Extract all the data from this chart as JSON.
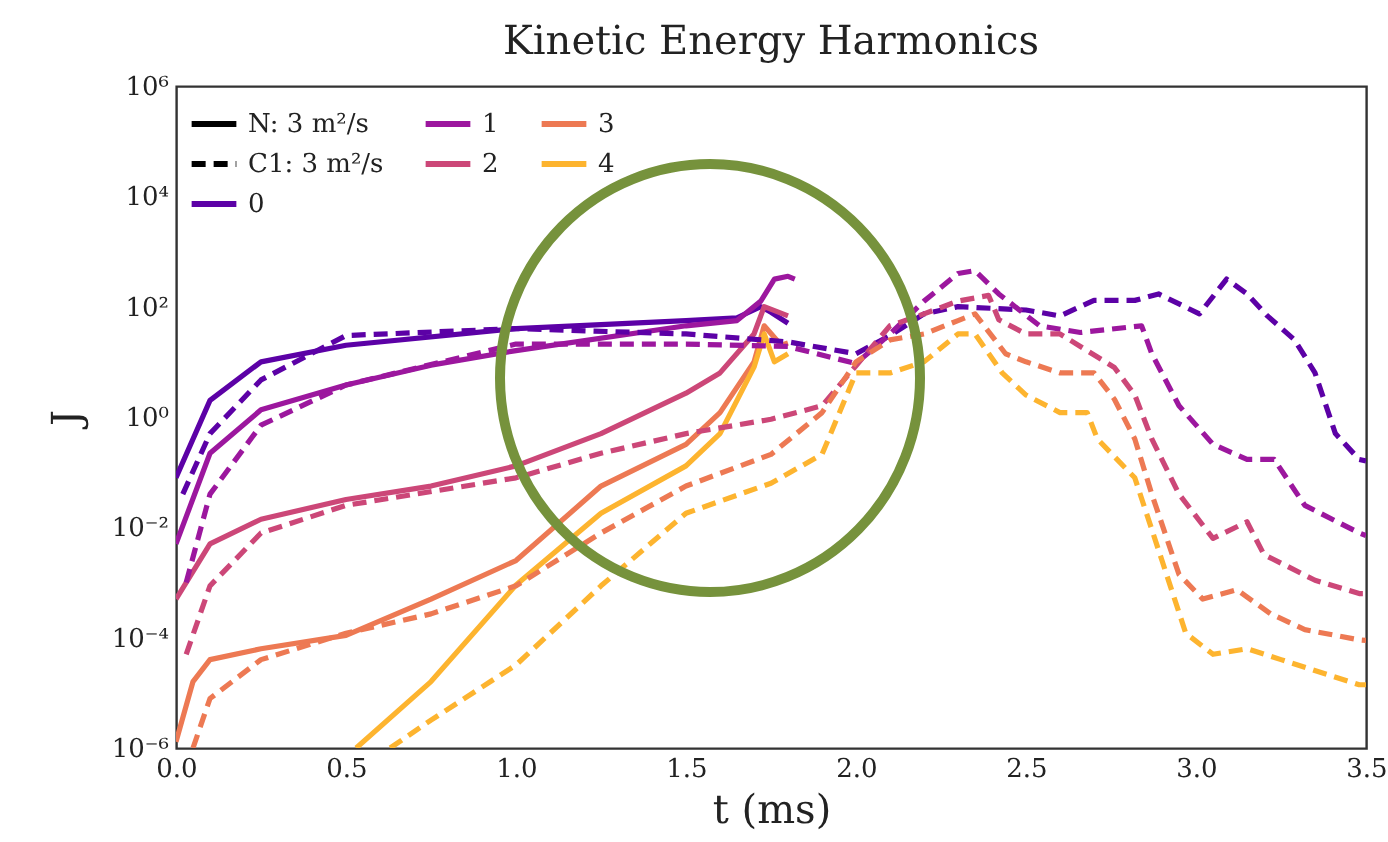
{
  "chart_data": {
    "type": "line",
    "title": "Kinetic Energy Harmonics",
    "xlabel": "t (ms)",
    "ylabel": "J",
    "log": "y",
    "grid": false,
    "legend": "top left",
    "xlim": [
      0,
      3.5
    ],
    "xticks": [
      {
        "value": 0,
        "label": "0.0"
      },
      0.5,
      {
        "value": 1,
        "label": "1.0"
      },
      1.5,
      {
        "value": 2,
        "label": "2.0"
      },
      2.5,
      {
        "value": 3,
        "label": "3.0"
      },
      3.5
    ],
    "ylim": [
      1e-06,
      1000000.0
    ],
    "yticks": [
      {
        "value": 1e-06,
        "label": "10⁻⁶"
      },
      {
        "value": 0.0001,
        "label": "10⁻⁴"
      },
      {
        "value": 0.01,
        "label": "10⁻²"
      },
      {
        "value": 1,
        "label": "10⁰"
      },
      {
        "value": 100,
        "label": "10²"
      },
      {
        "value": 10000.0,
        "label": "10⁴"
      },
      {
        "value": 1000000.0,
        "label": "10⁶"
      }
    ],
    "series": [
      {
        "name": "N: 3 m²/s",
        "color": "#000000",
        "line_style": "solid"
      },
      {
        "name": "C1: 3 m²/s",
        "color": "#000000",
        "line_style": "dashed"
      },
      {
        "name": "0",
        "color": "#5c01a6",
        "line_style": "solid",
        "x": [
          0,
          0.1,
          0.25,
          0.5,
          1.0,
          1.5,
          1.65,
          1.72,
          1.75,
          1.8
        ],
        "values": [
          0.079,
          2,
          10,
          20,
          40,
          56,
          63,
          100,
          79,
          50
        ]
      },
      {
        "name": "1",
        "color": "#9c179e",
        "line_style": "solid",
        "x": [
          0,
          0.1,
          0.25,
          0.5,
          0.75,
          1.0,
          1.5,
          1.65,
          1.72,
          1.76,
          1.8,
          1.82
        ],
        "values": [
          0.005,
          0.22,
          1.35,
          3.8,
          8.7,
          16,
          45,
          56,
          126,
          316,
          355,
          316
        ]
      },
      {
        "name": "2",
        "color": "#cc4778",
        "line_style": "solid",
        "x": [
          0,
          0.1,
          0.25,
          0.5,
          0.75,
          1.0,
          1.25,
          1.5,
          1.6,
          1.7,
          1.73,
          1.8
        ],
        "values": [
          0.0005,
          0.005,
          0.014,
          0.032,
          0.056,
          0.13,
          0.5,
          2.7,
          6.3,
          32,
          100,
          68
        ]
      },
      {
        "name": "3",
        "color": "#ed7953",
        "line_style": "solid",
        "x": [
          0,
          0.05,
          0.1,
          0.25,
          0.5,
          0.75,
          1.0,
          1.25,
          1.5,
          1.6,
          1.7,
          1.73,
          1.78,
          1.8
        ],
        "values": [
          1.3e-06,
          1.6e-05,
          4e-05,
          6.3e-05,
          0.00011,
          0.0005,
          0.0025,
          0.056,
          0.32,
          1.2,
          10,
          45,
          20,
          22
        ]
      },
      {
        "name": "4",
        "color": "#fdb42f",
        "line_style": "solid",
        "x": [
          0.53,
          0.75,
          1.0,
          1.25,
          1.5,
          1.6,
          1.7,
          1.73,
          1.76,
          1.8
        ],
        "values": [
          1e-06,
          1.6e-05,
          0.0009,
          0.018,
          0.13,
          0.5,
          8,
          32,
          10,
          14
        ]
      },
      {
        "color": "#5c01a6",
        "line_style": "dashed",
        "x": [
          0.02,
          0.1,
          0.25,
          0.5,
          1.0,
          1.5,
          1.8,
          2.0,
          2.1,
          2.2,
          2.3,
          2.5,
          2.6,
          2.7,
          2.82,
          2.89,
          3.01,
          3.09,
          3.15,
          3.21,
          3.29,
          3.35,
          3.41,
          3.48,
          3.5
        ],
        "values": [
          0.04,
          0.5,
          4.7,
          30,
          40,
          32,
          23,
          14,
          30,
          74,
          100,
          87,
          68,
          130,
          130,
          170,
          74,
          316,
          170,
          68,
          25,
          6.3,
          0.5,
          0.17,
          0.16
        ]
      },
      {
        "color": "#9c179e",
        "line_style": "dashed",
        "x": [
          0.03,
          0.1,
          0.25,
          0.5,
          1.0,
          1.5,
          1.8,
          2.0,
          2.1,
          2.2,
          2.3,
          2.35,
          2.42,
          2.54,
          2.66,
          2.84,
          2.87,
          2.95,
          3.05,
          3.15,
          3.23,
          3.32,
          3.48,
          3.5
        ],
        "values": [
          0.001,
          0.04,
          0.71,
          3.8,
          21,
          21,
          19,
          9.3,
          32,
          126,
          400,
          450,
          170,
          45,
          34,
          45,
          14,
          1.6,
          0.32,
          0.17,
          0.17,
          0.025,
          0.0079,
          0.0071
        ]
      },
      {
        "color": "#cc4778",
        "line_style": "dashed",
        "x": [
          0.03,
          0.1,
          0.25,
          0.5,
          1.0,
          1.25,
          1.5,
          1.75,
          1.9,
          2.0,
          2.1,
          2.2,
          2.3,
          2.39,
          2.42,
          2.5,
          2.6,
          2.66,
          2.76,
          2.82,
          2.87,
          2.95,
          3.05,
          3.15,
          3.2,
          3.35,
          3.48,
          3.5
        ],
        "values": [
          5e-05,
          0.00087,
          0.0079,
          0.025,
          0.079,
          0.22,
          0.5,
          0.91,
          1.6,
          8.5,
          45,
          74,
          126,
          160,
          58,
          32,
          32,
          19,
          7.9,
          2.5,
          0.4,
          0.04,
          0.0063,
          0.0126,
          0.0032,
          0.0011,
          0.00063,
          0.00063
        ]
      },
      {
        "color": "#ed7953",
        "line_style": "dashed",
        "x": [
          0.05,
          0.1,
          0.25,
          0.5,
          0.75,
          1.0,
          1.25,
          1.5,
          1.75,
          1.9,
          2.0,
          2.1,
          2.2,
          2.3,
          2.35,
          2.44,
          2.5,
          2.6,
          2.7,
          2.76,
          2.82,
          2.87,
          2.95,
          3.02,
          3.12,
          3.22,
          3.32,
          3.48,
          3.5
        ],
        "values": [
          1e-06,
          7.9e-06,
          4e-05,
          0.00012,
          0.00027,
          0.00087,
          0.0079,
          0.056,
          0.21,
          1.2,
          10,
          25,
          32,
          56,
          74,
          14,
          10,
          6.3,
          6.3,
          2.1,
          0.4,
          0.04,
          0.0014,
          0.0005,
          0.00074,
          0.00027,
          0.00014,
          9.1e-05,
          8.9e-05
        ]
      },
      {
        "color": "#fdb42f",
        "line_style": "dashed",
        "x": [
          0.63,
          0.75,
          1.0,
          1.25,
          1.5,
          1.75,
          1.9,
          2.0,
          2.1,
          2.2,
          2.3,
          2.35,
          2.43,
          2.5,
          2.6,
          2.68,
          2.71,
          2.82,
          2.9,
          2.97,
          3.05,
          3.15,
          3.25,
          3.48,
          3.5
        ],
        "values": [
          1e-06,
          3.2e-06,
          3.2e-05,
          0.00087,
          0.018,
          0.063,
          0.21,
          6.3,
          6.3,
          10,
          32,
          32,
          6.3,
          2.5,
          1.2,
          1.2,
          0.4,
          0.079,
          0.0025,
          0.00012,
          5e-05,
          6.3e-05,
          4e-05,
          1.4e-05,
          1.4e-05
        ]
      }
    ]
  }
}
